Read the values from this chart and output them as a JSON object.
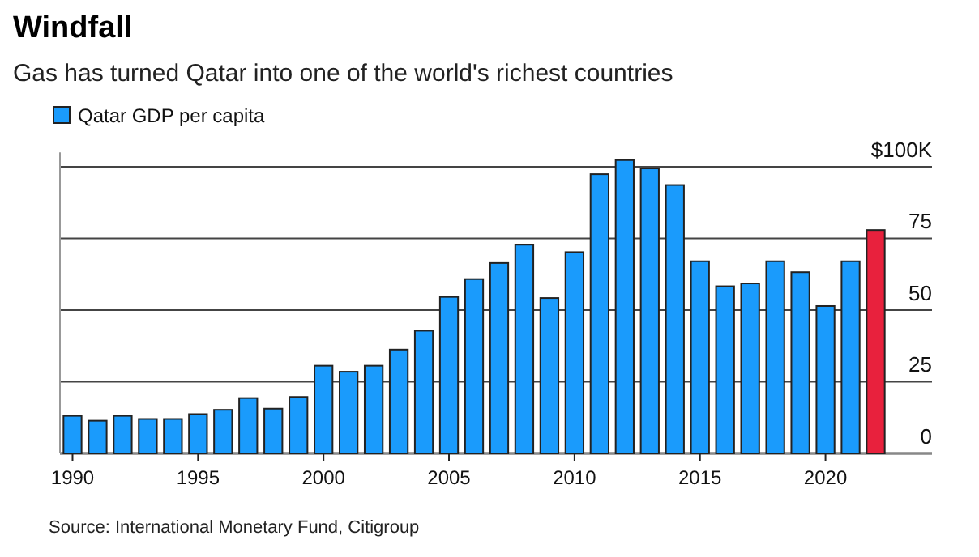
{
  "chart_data": {
    "type": "bar",
    "title": "Windfall",
    "subtitle": "Gas has turned Qatar into one of the world's richest countries",
    "x": [
      1990,
      1991,
      1992,
      1993,
      1994,
      1995,
      1996,
      1997,
      1998,
      1999,
      2000,
      2001,
      2002,
      2003,
      2004,
      2005,
      2006,
      2007,
      2008,
      2009,
      2010,
      2011,
      2012,
      2013,
      2014,
      2015,
      2016,
      2017,
      2018,
      2019,
      2020,
      2021,
      2022
    ],
    "series": [
      {
        "name": "Qatar GDP per capita",
        "color": "#1a9bfc",
        "values": [
          13.1,
          11.4,
          13.1,
          12,
          12,
          13.7,
          15.2,
          19.3,
          15.6,
          19.7,
          30.6,
          28.5,
          30.6,
          36.2,
          42.8,
          54.6,
          60.8,
          66.4,
          72.8,
          54.2,
          70.2,
          97.4,
          102.3,
          99.4,
          93.6,
          67,
          58.3,
          59.3,
          67,
          63.2,
          51.4,
          67,
          77.9
        ],
        "colors": [
          "#1a9bfc",
          "#1a9bfc",
          "#1a9bfc",
          "#1a9bfc",
          "#1a9bfc",
          "#1a9bfc",
          "#1a9bfc",
          "#1a9bfc",
          "#1a9bfc",
          "#1a9bfc",
          "#1a9bfc",
          "#1a9bfc",
          "#1a9bfc",
          "#1a9bfc",
          "#1a9bfc",
          "#1a9bfc",
          "#1a9bfc",
          "#1a9bfc",
          "#1a9bfc",
          "#1a9bfc",
          "#1a9bfc",
          "#1a9bfc",
          "#1a9bfc",
          "#1a9bfc",
          "#1a9bfc",
          "#1a9bfc",
          "#1a9bfc",
          "#1a9bfc",
          "#1a9bfc",
          "#1a9bfc",
          "#1a9bfc",
          "#1a9bfc",
          "#e8213d"
        ]
      }
    ],
    "xlim": [
      1989.5,
      2022.5
    ],
    "xticks": [
      1990,
      1995,
      2000,
      2005,
      2010,
      2015,
      2020
    ],
    "ylim": [
      0,
      105
    ],
    "yticks": [
      0,
      25,
      50,
      75,
      {
        "value": 100,
        "label": "$100K"
      }
    ],
    "grid": "y",
    "legend": "top left",
    "annotations": [
      "Source: International Monetary Fund, Citigroup"
    ]
  }
}
